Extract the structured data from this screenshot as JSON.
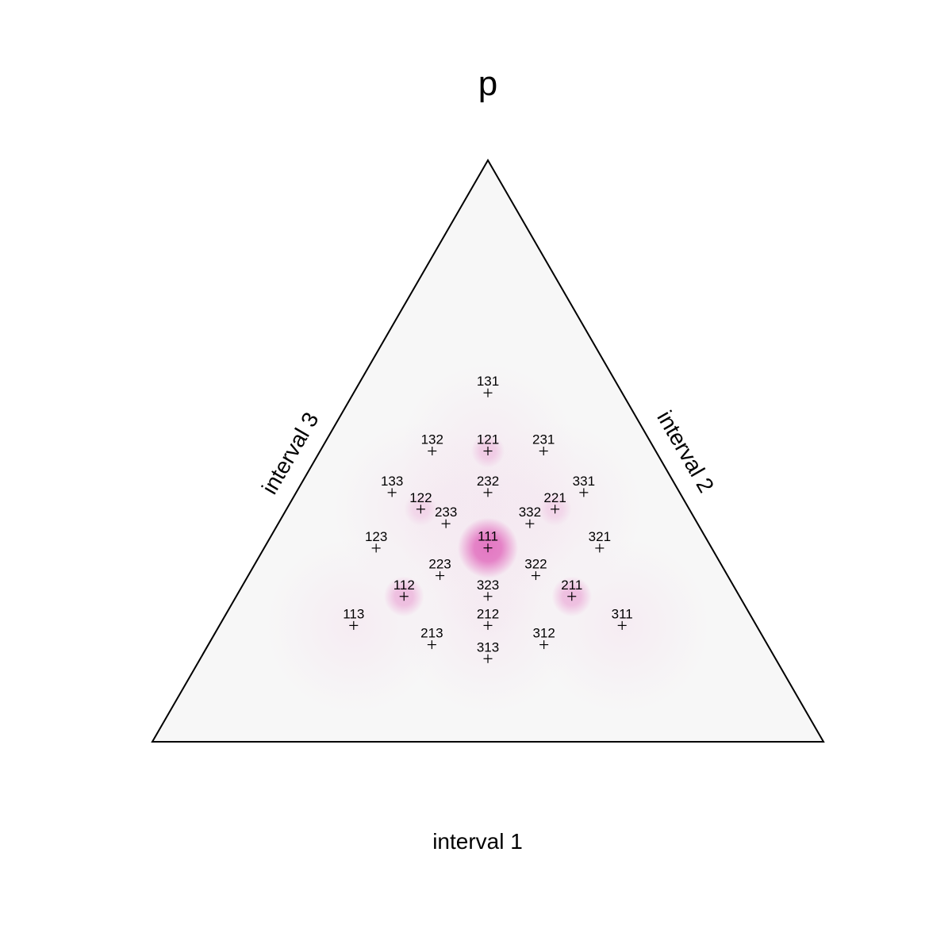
{
  "chart_data": {
    "type": "scatter",
    "coordinate_system": "ternary",
    "title": "p",
    "axes": {
      "bottom": "interval 1",
      "right": "interval 2",
      "left": "interval 3"
    },
    "colors": {
      "density": "#e377c2",
      "background": "#f7f7f7",
      "frame": "#000000"
    },
    "points": [
      {
        "label": "131",
        "a": 0.2,
        "b": 0.6,
        "c": 0.2
      },
      {
        "label": "132",
        "a": 0.167,
        "b": 0.5,
        "c": 0.333
      },
      {
        "label": "121",
        "a": 0.25,
        "b": 0.5,
        "c": 0.25
      },
      {
        "label": "231",
        "a": 0.333,
        "b": 0.5,
        "c": 0.167
      },
      {
        "label": "133",
        "a": 0.143,
        "b": 0.429,
        "c": 0.429
      },
      {
        "label": "232",
        "a": 0.286,
        "b": 0.429,
        "c": 0.286
      },
      {
        "label": "331",
        "a": 0.429,
        "b": 0.429,
        "c": 0.143
      },
      {
        "label": "122",
        "a": 0.2,
        "b": 0.4,
        "c": 0.4
      },
      {
        "label": "221",
        "a": 0.4,
        "b": 0.4,
        "c": 0.2
      },
      {
        "label": "233",
        "a": 0.25,
        "b": 0.375,
        "c": 0.375
      },
      {
        "label": "332",
        "a": 0.375,
        "b": 0.375,
        "c": 0.25
      },
      {
        "label": "123",
        "a": 0.167,
        "b": 0.333,
        "c": 0.5
      },
      {
        "label": "111",
        "a": 0.333,
        "b": 0.333,
        "c": 0.333
      },
      {
        "label": "321",
        "a": 0.5,
        "b": 0.333,
        "c": 0.167
      },
      {
        "label": "223",
        "a": 0.286,
        "b": 0.286,
        "c": 0.429
      },
      {
        "label": "322",
        "a": 0.429,
        "b": 0.286,
        "c": 0.286
      },
      {
        "label": "112",
        "a": 0.25,
        "b": 0.25,
        "c": 0.5
      },
      {
        "label": "323",
        "a": 0.375,
        "b": 0.25,
        "c": 0.375
      },
      {
        "label": "211",
        "a": 0.5,
        "b": 0.25,
        "c": 0.25
      },
      {
        "label": "113",
        "a": 0.2,
        "b": 0.2,
        "c": 0.6
      },
      {
        "label": "212",
        "a": 0.4,
        "b": 0.2,
        "c": 0.4
      },
      {
        "label": "311",
        "a": 0.6,
        "b": 0.2,
        "c": 0.2
      },
      {
        "label": "213",
        "a": 0.333,
        "b": 0.167,
        "c": 0.5
      },
      {
        "label": "312",
        "a": 0.5,
        "b": 0.167,
        "c": 0.333
      },
      {
        "label": "313",
        "a": 0.429,
        "b": 0.143,
        "c": 0.429
      }
    ],
    "density_clusters": [
      {
        "ref": "111",
        "weight": 1.0,
        "spread": 0.045
      },
      {
        "ref": "112",
        "weight": 0.45,
        "spread": 0.03
      },
      {
        "ref": "211",
        "weight": 0.45,
        "spread": 0.03
      },
      {
        "ref": "121",
        "weight": 0.3,
        "spread": 0.025
      },
      {
        "ref": "122",
        "weight": 0.2,
        "spread": 0.025
      },
      {
        "ref": "221",
        "weight": 0.2,
        "spread": 0.025
      }
    ]
  }
}
